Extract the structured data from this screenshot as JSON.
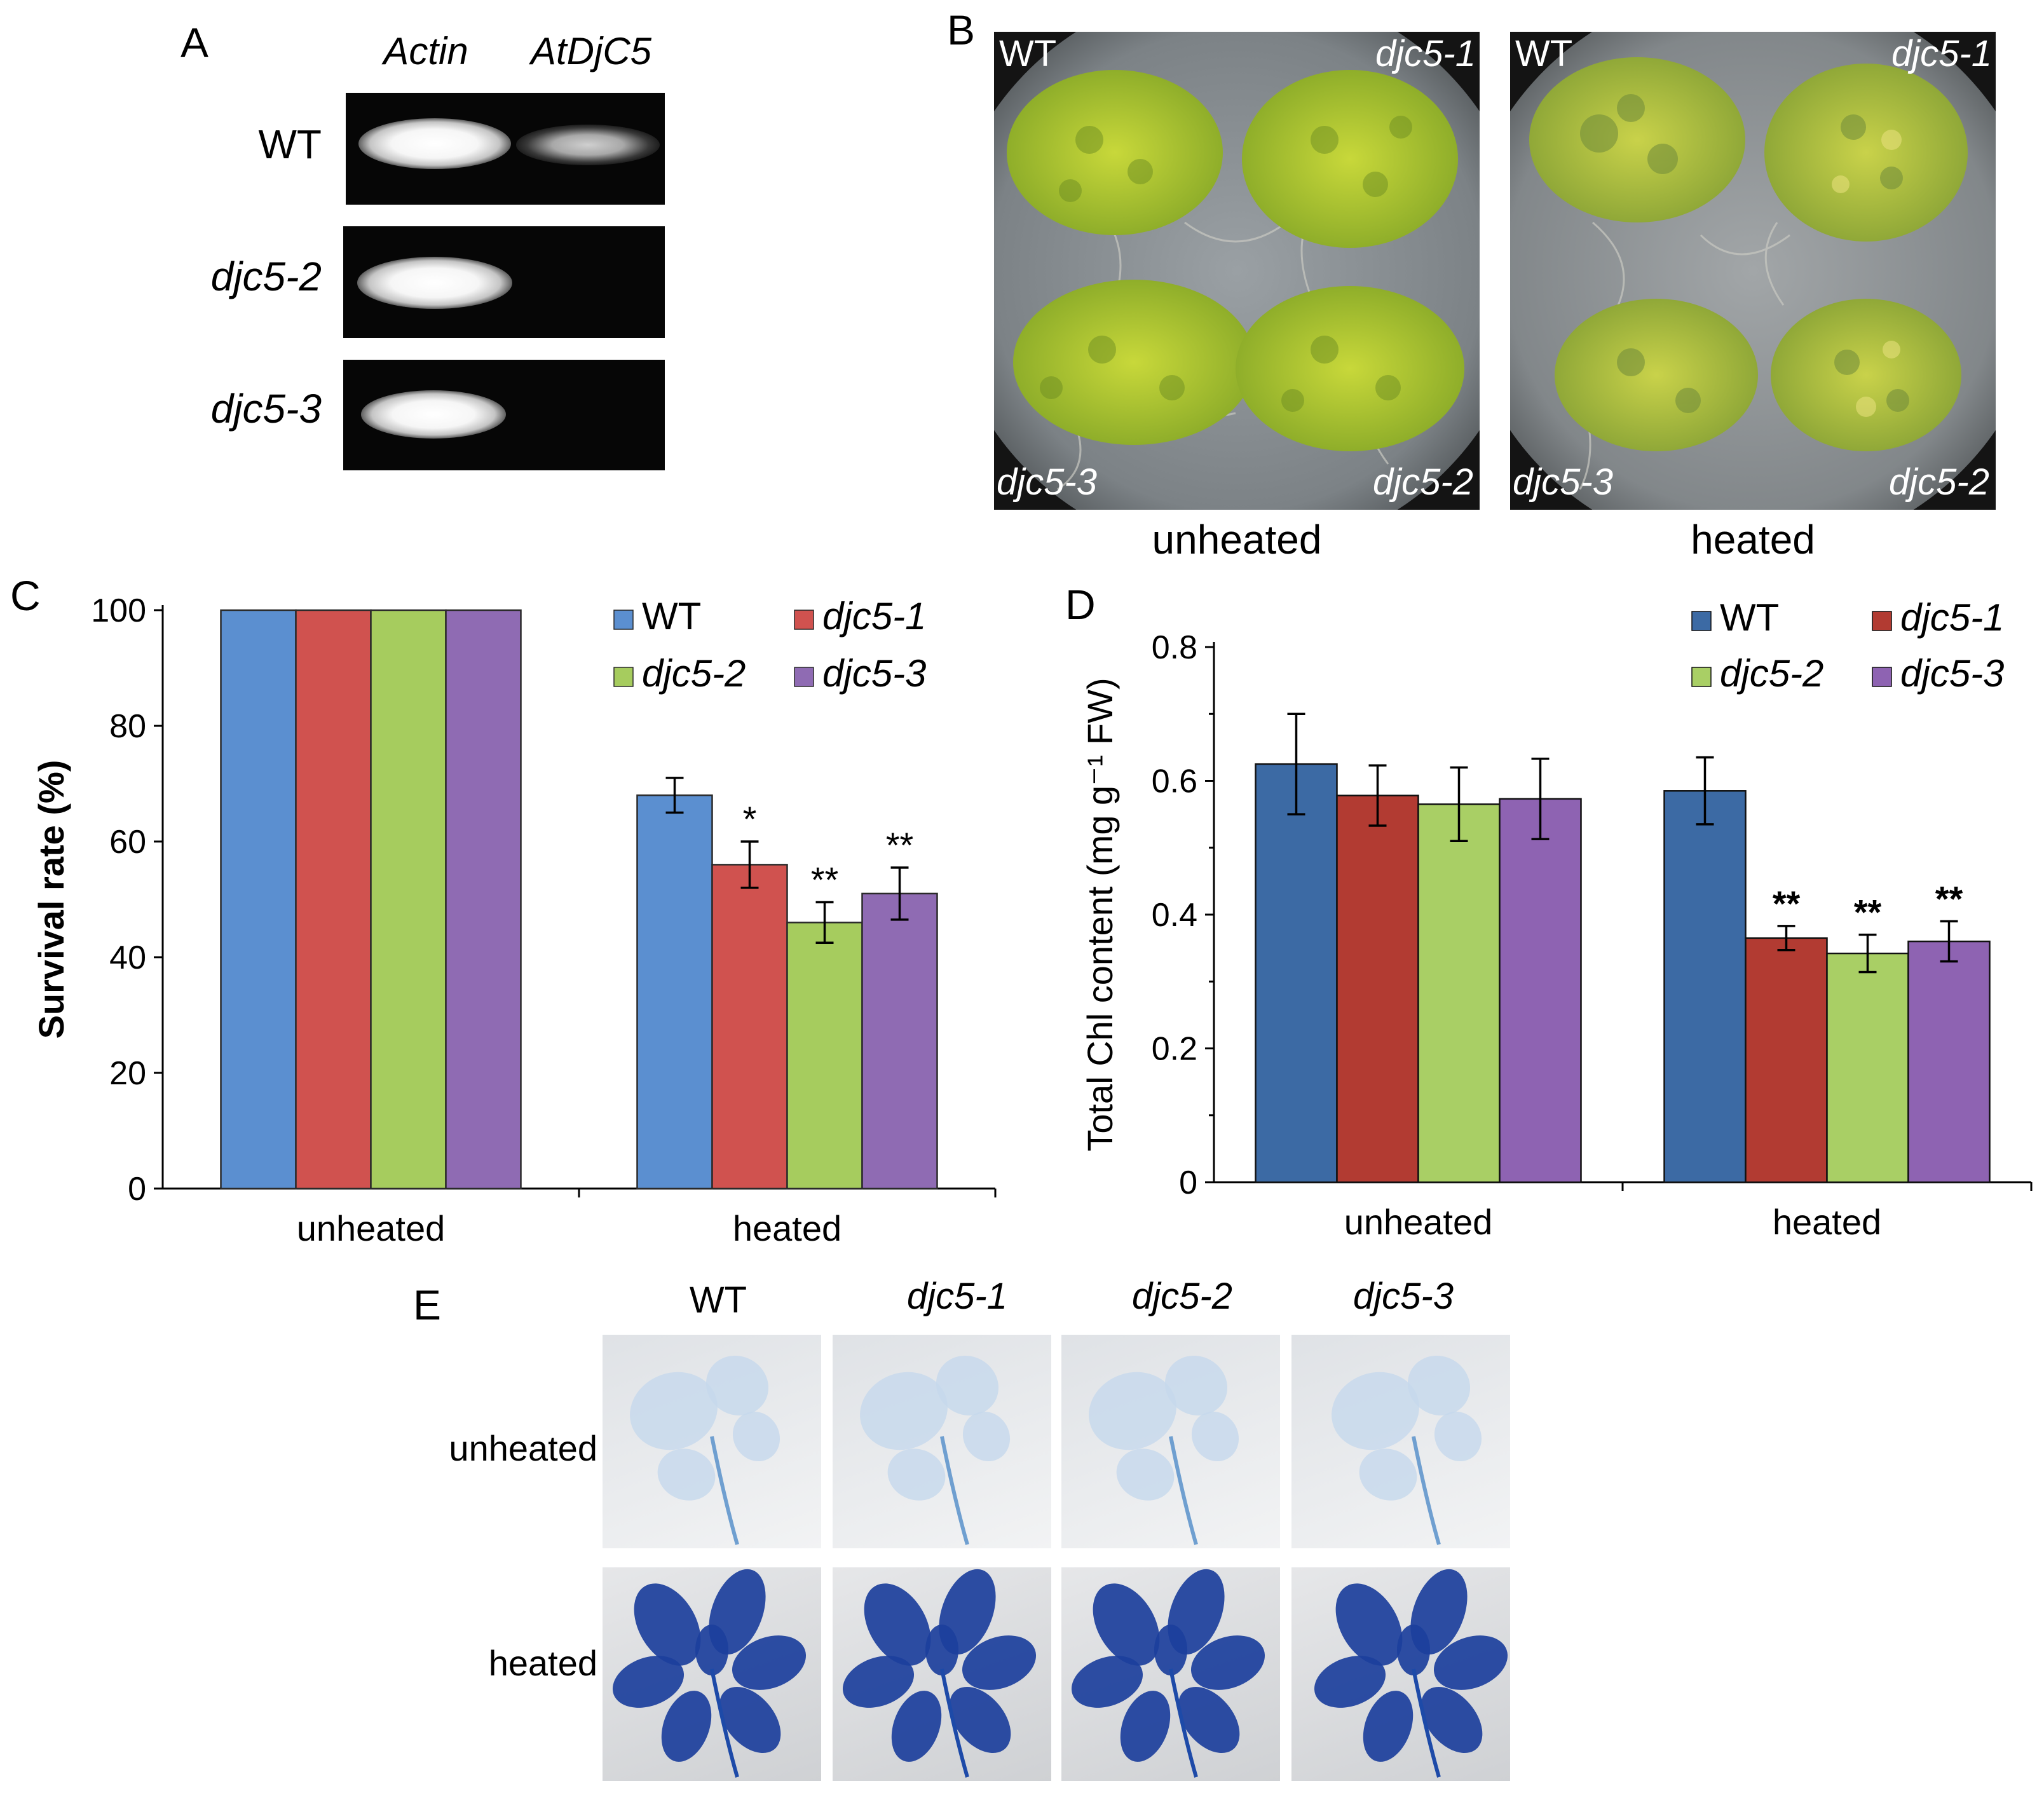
{
  "panel_labels": {
    "a": "A",
    "b": "B",
    "c": "C",
    "d": "D",
    "e": "E"
  },
  "panel_a": {
    "columns": [
      "Actin",
      "AtDjC5"
    ],
    "rows": [
      "WT",
      "djc5-2",
      "djc5-3"
    ]
  },
  "panel_b": {
    "captions": [
      "unheated",
      "heated"
    ],
    "corner_labels": {
      "top_left": "WT",
      "top_right": "djc5-1",
      "bottom_left": "djc5-3",
      "bottom_right": "djc5-2"
    }
  },
  "panel_e": {
    "columns": [
      "WT",
      "djc5-1",
      "djc5-2",
      "djc5-3"
    ],
    "rows": [
      "unheated",
      "heated"
    ]
  },
  "colors": {
    "c_series": [
      "#5b8fd0",
      "#d0524f",
      "#a6cc5e",
      "#8f6bb3"
    ],
    "d_series": [
      "#3c6aa4",
      "#b23b32",
      "#a9cf65",
      "#8e63b2"
    ],
    "gel_bg": "#060606",
    "stain_blue": "#1c3f9c"
  },
  "chart_data": [
    {
      "type": "bar",
      "panel": "C",
      "ylabel": "Survival rate (%)",
      "ylim": [
        0,
        100
      ],
      "yticks": [
        "0",
        "20",
        "40",
        "60",
        "80",
        "100"
      ],
      "categories": [
        "unheated",
        "heated"
      ],
      "legend_placement": "top-right",
      "series": [
        {
          "name": "WT",
          "values": [
            100,
            68
          ],
          "errors": [
            0,
            3
          ],
          "stars": [
            "",
            ""
          ]
        },
        {
          "name": "djc5-1",
          "values": [
            100,
            56
          ],
          "errors": [
            0,
            4
          ],
          "stars": [
            "",
            "*"
          ]
        },
        {
          "name": "djc5-2",
          "values": [
            100,
            46
          ],
          "errors": [
            0,
            3.5
          ],
          "stars": [
            "",
            "**"
          ]
        },
        {
          "name": "djc5-3",
          "values": [
            100,
            51
          ],
          "errors": [
            0,
            4.5
          ],
          "stars": [
            "",
            "**"
          ]
        }
      ]
    },
    {
      "type": "bar",
      "panel": "D",
      "ylabel": "Total Chl content (mg g⁻¹ FW)",
      "ylim": [
        0,
        0.8
      ],
      "yticks": [
        "0",
        "0.2",
        "0.4",
        "0.6",
        "0.8"
      ],
      "categories": [
        "unheated",
        "heated"
      ],
      "legend_placement": "top-right",
      "series": [
        {
          "name": "WT",
          "values": [
            0.625,
            0.585
          ],
          "errors": [
            0.075,
            0.05
          ],
          "stars": [
            "",
            ""
          ]
        },
        {
          "name": "djc5-1",
          "values": [
            0.578,
            0.365
          ],
          "errors": [
            0.045,
            0.018
          ],
          "stars": [
            "",
            "**"
          ]
        },
        {
          "name": "djc5-2",
          "values": [
            0.565,
            0.342
          ],
          "errors": [
            0.055,
            0.028
          ],
          "stars": [
            "",
            "**"
          ]
        },
        {
          "name": "djc5-3",
          "values": [
            0.573,
            0.36
          ],
          "errors": [
            0.06,
            0.03
          ],
          "stars": [
            "",
            "**"
          ]
        }
      ]
    }
  ]
}
